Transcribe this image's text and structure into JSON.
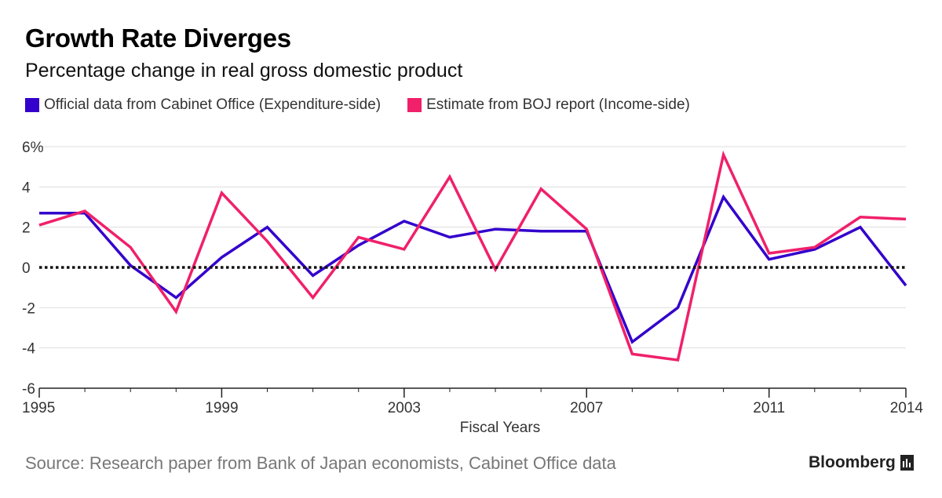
{
  "header": {
    "title": "Growth Rate Diverges",
    "subtitle": "Percentage change in real gross domestic product"
  },
  "footer": {
    "source": "Source: Research paper from Bank of Japan economists, Cabinet Office data",
    "brand": "Bloomberg"
  },
  "colors": {
    "official": "#3300cc",
    "estimate": "#f0206a",
    "zero_line": "#111111",
    "grid": "#dddddd",
    "axis_text": "#333333"
  },
  "chart_data": {
    "type": "line",
    "title": "Growth Rate Diverges",
    "subtitle": "Percentage change in real gross domestic product",
    "xlabel": "Fiscal Years",
    "ylabel": "",
    "x": [
      1995,
      1996,
      1997,
      1998,
      1999,
      2000,
      2001,
      2002,
      2003,
      2004,
      2005,
      2006,
      2007,
      2008,
      2009,
      2010,
      2011,
      2012,
      2013,
      2014
    ],
    "xlim": [
      1995,
      2014
    ],
    "ylim": [
      -6,
      6
    ],
    "x_ticks": [
      "1995",
      "1999",
      "2003",
      "2007",
      "2011",
      "2014"
    ],
    "y_ticks": [
      {
        "value": 6,
        "label": "6%"
      },
      {
        "value": 4,
        "label": "4"
      },
      {
        "value": 2,
        "label": "2"
      },
      {
        "value": 0,
        "label": "0"
      },
      {
        "value": -2,
        "label": "-2"
      },
      {
        "value": -4,
        "label": "-4"
      },
      {
        "value": -6,
        "label": "-6"
      }
    ],
    "grid": true,
    "zero_line": "dotted",
    "legend_position": "top-left",
    "series": [
      {
        "name": "Official data from Cabinet Office (Expenditure-side)",
        "color": "#3300cc",
        "values": [
          2.7,
          2.7,
          0.1,
          -1.5,
          0.5,
          2.0,
          -0.4,
          1.1,
          2.3,
          1.5,
          1.9,
          1.8,
          1.8,
          -3.7,
          -2.0,
          3.5,
          0.4,
          0.9,
          2.0,
          -0.9
        ]
      },
      {
        "name": "Estimate from BOJ report (Income-side)",
        "color": "#f0206a",
        "values": [
          2.1,
          2.8,
          1.0,
          -2.2,
          3.7,
          1.3,
          -1.5,
          1.5,
          0.9,
          4.5,
          -0.1,
          3.9,
          1.9,
          -4.3,
          -4.6,
          5.6,
          0.7,
          1.0,
          2.5,
          2.4
        ]
      }
    ]
  }
}
